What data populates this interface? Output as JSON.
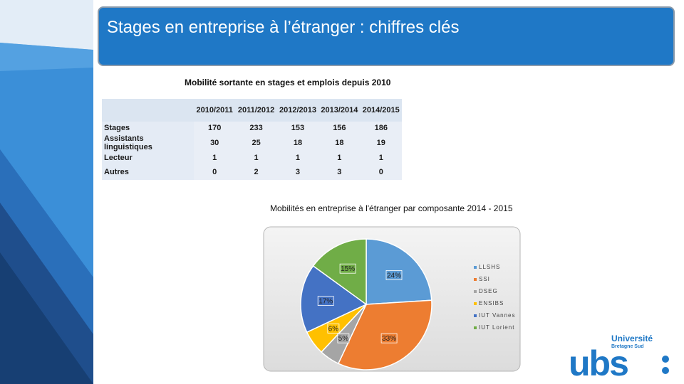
{
  "slide": {
    "title": "Stages en entreprise à l’étranger : chiffres clés"
  },
  "colors": {
    "title_bar": "#1f78c6",
    "side_dark": "#1f4e8c",
    "side_light": "#dfeaf5",
    "table_header_bg": "#dbe5f1",
    "table_body_bg": "#e9eef6"
  },
  "table": {
    "caption": "Mobilité sortante en stages et emplois  depuis 2010",
    "columns": [
      "2010/2011",
      "2011/2012",
      "2012/2013",
      "2013/2014",
      "2014/2015"
    ],
    "rows": [
      {
        "label": "Stages",
        "values": [
          "170",
          "233",
          "153",
          "156",
          "186"
        ]
      },
      {
        "label": "Assistants linguistiques",
        "values": [
          "30",
          "25",
          "18",
          "18",
          "19"
        ]
      },
      {
        "label": "Lecteur",
        "values": [
          "1",
          "1",
          "1",
          "1",
          "1"
        ]
      },
      {
        "label": "Autres",
        "values": [
          "0",
          "2",
          "3",
          "3",
          "0"
        ]
      }
    ]
  },
  "chart_data": {
    "type": "pie",
    "title": "Mobilités en entreprise à l'étranger par composante  2014 - 2015",
    "legend_position": "right",
    "slices": [
      {
        "label": "LLSHS",
        "legend_label": "LLSHS",
        "value": 24,
        "display": "24%",
        "color": "#5b9bd5"
      },
      {
        "label": "SSI",
        "legend_label": "SSI",
        "value": 33,
        "display": "33%",
        "color": "#ed7d31"
      },
      {
        "label": "DSEG",
        "legend_label": "DSEG",
        "value": 5,
        "display": "5%",
        "color": "#a5a5a5"
      },
      {
        "label": "ENSIBS",
        "legend_label": "ENSIBS",
        "value": 6,
        "display": "6%",
        "color": "#ffc000"
      },
      {
        "label": "IUT Vannes",
        "legend_label": "IUT Vannes",
        "value": 17,
        "display": "17%",
        "color": "#4472c4"
      },
      {
        "label": "IUT Lorient",
        "legend_label": "IUT Lorient",
        "value": 15,
        "display": "15%",
        "color": "#70ad47"
      }
    ]
  },
  "logo": {
    "name": "Université",
    "subtitle": "Bretagne Sud",
    "mark": "ubs"
  }
}
